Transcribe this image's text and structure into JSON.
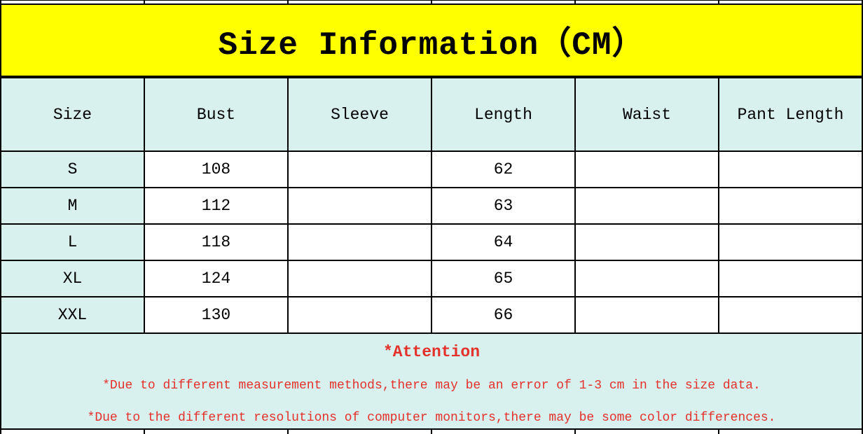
{
  "title": "Size Information（CM）",
  "colors": {
    "banner_yellow": "#ffff00",
    "cell_cyan": "#d8f0ee",
    "note_red": "#e4312b",
    "border_black": "#000000"
  },
  "chart_data": {
    "type": "table",
    "title": "Size Information (CM)",
    "columns": [
      "Size",
      "Bust",
      "Sleeve",
      "Length",
      "Waist",
      "Pant Length"
    ],
    "rows": [
      [
        "S",
        "108",
        "",
        "62",
        "",
        ""
      ],
      [
        "M",
        "112",
        "",
        "63",
        "",
        ""
      ],
      [
        "L",
        "118",
        "",
        "64",
        "",
        ""
      ],
      [
        "XL",
        "124",
        "",
        "65",
        "",
        ""
      ],
      [
        "XXL",
        "130",
        "",
        "66",
        "",
        ""
      ]
    ],
    "units": "CM",
    "notes": [
      "*Due to different measurement methods,there may be an error of 1-3 cm in the size data.",
      "*Due to the different resolutions of computer monitors,there may be some color differences."
    ]
  },
  "table": {
    "headers": [
      "Size",
      "Bust",
      "Sleeve",
      "Length",
      "Waist",
      "Pant Length"
    ],
    "rows": [
      {
        "cells": [
          "S",
          "108",
          "",
          "62",
          "",
          ""
        ]
      },
      {
        "cells": [
          "M",
          "112",
          "",
          "63",
          "",
          ""
        ]
      },
      {
        "cells": [
          "L",
          "118",
          "",
          "64",
          "",
          ""
        ]
      },
      {
        "cells": [
          "XL",
          "124",
          "",
          "65",
          "",
          ""
        ]
      },
      {
        "cells": [
          "XXL",
          "130",
          "",
          "66",
          "",
          ""
        ]
      }
    ]
  },
  "attention": {
    "heading": "*Attention",
    "note1": "*Due to different measurement methods,there may be an error of 1-3 cm in the size data.",
    "note2": "*Due to the different resolutions of computer monitors,there may be some color differences."
  }
}
